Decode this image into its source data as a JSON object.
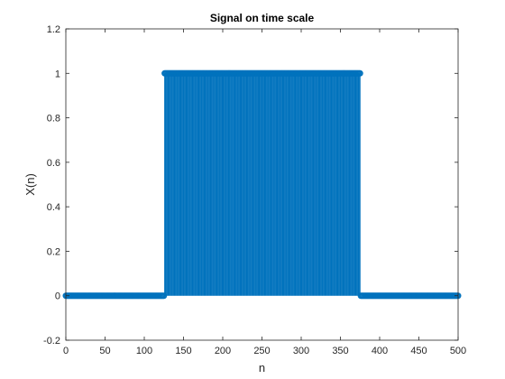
{
  "chart_data": {
    "type": "stem",
    "title": "Signal on time scale",
    "xlabel": "n",
    "ylabel": "X(n)",
    "xlim": [
      0,
      500
    ],
    "ylim": [
      -0.2,
      1.2
    ],
    "xticks": [
      0,
      50,
      100,
      150,
      200,
      250,
      300,
      350,
      400,
      450,
      500
    ],
    "yticks": [
      -0.2,
      0,
      0.2,
      0.4,
      0.6,
      0.8,
      1,
      1.2
    ],
    "xtick_labels": [
      "0",
      "50",
      "100",
      "150",
      "200",
      "250",
      "300",
      "350",
      "400",
      "450",
      "500"
    ],
    "ytick_labels": [
      "-0.2",
      "0",
      "0.2",
      "0.4",
      "0.6",
      "0.8",
      "1",
      "1.2"
    ],
    "grid": false,
    "series": [
      {
        "color": "#0072bd",
        "marker": "o",
        "n_start": 0,
        "n_end": 500,
        "segments": [
          {
            "from": 0,
            "to": 125,
            "value": 0
          },
          {
            "from": 126,
            "to": 375,
            "value": 1
          },
          {
            "from": 376,
            "to": 500,
            "value": 0
          }
        ]
      }
    ]
  }
}
